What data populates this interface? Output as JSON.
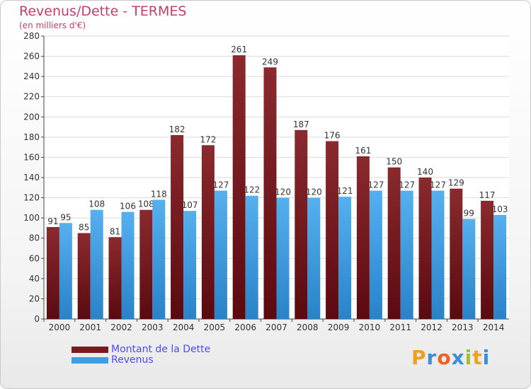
{
  "header": {
    "title": "Revenus/Dette - TERMES",
    "subtitle": "(en milliers d'€)"
  },
  "chart_data": {
    "type": "bar",
    "categories": [
      "2000",
      "2001",
      "2002",
      "2003",
      "2004",
      "2005",
      "2006",
      "2007",
      "2008",
      "2009",
      "2010",
      "2011",
      "2012",
      "2013",
      "2014"
    ],
    "series": [
      {
        "name": "Montant de la Dette",
        "color": "#7a1a1e",
        "values": [
          91,
          85,
          81,
          108,
          182,
          172,
          261,
          249,
          187,
          176,
          161,
          150,
          140,
          129,
          117
        ]
      },
      {
        "name": "Revenus",
        "color": "#3f9ee0",
        "values": [
          95,
          108,
          106,
          118,
          107,
          127,
          122,
          120,
          120,
          121,
          127,
          127,
          127,
          99,
          103
        ]
      }
    ],
    "ylim": [
      0,
      280
    ],
    "yticks": [
      0,
      20,
      40,
      60,
      80,
      100,
      120,
      140,
      160,
      180,
      200,
      220,
      240,
      260,
      280
    ],
    "grid": true,
    "legend_position": "bottom-left"
  },
  "legend": {
    "items": [
      {
        "label": "Montant de la Dette",
        "color": "#7a1a1e"
      },
      {
        "label": "Revenus",
        "color": "#3f9ee0"
      }
    ]
  },
  "logo": {
    "letters": [
      "P",
      "r",
      "o",
      "x",
      "i",
      "t",
      "i"
    ],
    "colors": [
      "#f0a020",
      "#3a8fd8",
      "#f06020",
      "#3a8fd8",
      "#a0c030",
      "#f0a020",
      "#3a8fd8"
    ]
  }
}
